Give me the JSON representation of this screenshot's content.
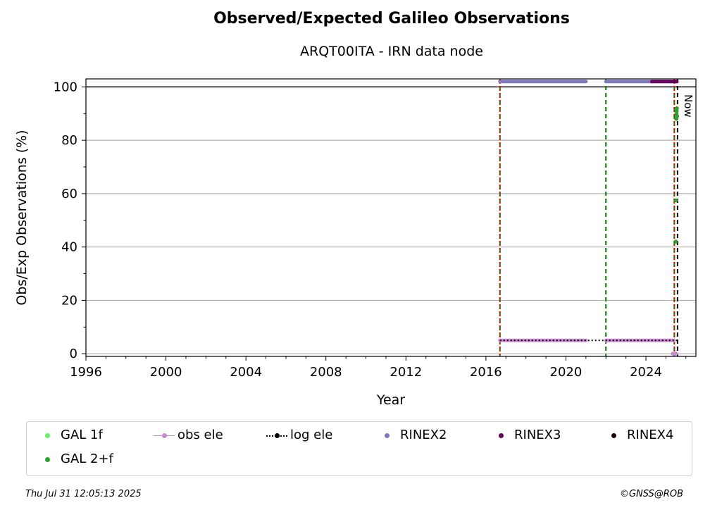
{
  "chart_data": {
    "type": "scatter",
    "title": "Observed/Expected Galileo Observations",
    "subtitle": "ARQT00ITA - IRN data node",
    "xlabel": "Year",
    "ylabel": "Obs/Exp Observations (%)",
    "xlim": [
      1996,
      2026.5
    ],
    "ylim": [
      -1,
      103
    ],
    "xticks": [
      1996,
      2000,
      2004,
      2008,
      2012,
      2016,
      2020,
      2024
    ],
    "yticks": [
      0,
      20,
      40,
      60,
      80,
      100
    ],
    "grid": "horizontal",
    "hline": 100,
    "vlines": [
      {
        "x": 2016.7,
        "color": "#008000",
        "style": "dashed"
      },
      {
        "x": 2016.7,
        "color": "#ff0000",
        "style": "dotted"
      },
      {
        "x": 2022.0,
        "color": "#008000",
        "style": "dashed"
      },
      {
        "x": 2025.42,
        "color": "#008000",
        "style": "dashed"
      },
      {
        "x": 2025.42,
        "color": "#ff0000",
        "style": "dotted"
      },
      {
        "x": 2025.58,
        "color": "#000000",
        "style": "dashed"
      }
    ],
    "now_label": "Now",
    "series": [
      {
        "name": "GAL 1f",
        "color": "#66ee66",
        "points": []
      },
      {
        "name": "GAL 2+f",
        "color": "#2ca02c",
        "points": [
          [
            2025.5,
            42
          ],
          [
            2025.51,
            57.5
          ],
          [
            2025.52,
            88
          ],
          [
            2025.53,
            90
          ],
          [
            2025.54,
            91
          ],
          [
            2025.55,
            92
          ],
          [
            2025.56,
            89
          ]
        ]
      },
      {
        "name": "obs ele",
        "color": "#c88ad0",
        "segments": [
          [
            2016.7,
            2021.0,
            5
          ],
          [
            2022.0,
            2025.4,
            5
          ]
        ],
        "points": [
          [
            2025.35,
            0
          ],
          [
            2025.45,
            0
          ],
          [
            2025.5,
            0
          ]
        ]
      },
      {
        "name": "log ele",
        "color": "#000000",
        "segments": [
          [
            2016.7,
            2025.55,
            5
          ]
        ]
      },
      {
        "name": "RINEX2",
        "color": "#8079c0",
        "segments": [
          [
            2016.7,
            2021.0,
            102
          ],
          [
            2022.0,
            2024.3,
            102
          ]
        ]
      },
      {
        "name": "RINEX3",
        "color": "#66005e",
        "segments": [
          [
            2024.3,
            2025.55,
            102
          ]
        ]
      },
      {
        "name": "RINEX4",
        "color": "#1a0010",
        "points": []
      }
    ]
  },
  "legend": {
    "items": [
      {
        "label": "GAL 1f",
        "color": "#66ee66",
        "kind": "dot"
      },
      {
        "label": "obs ele",
        "color": "#c88ad0",
        "kind": "line-dot"
      },
      {
        "label": "log ele",
        "color": "#000000",
        "kind": "dotted-dot"
      },
      {
        "label": "RINEX2",
        "color": "#8079c0",
        "kind": "dot"
      },
      {
        "label": "RINEX3",
        "color": "#66005e",
        "kind": "dot"
      },
      {
        "label": "RINEX4",
        "color": "#1a0010",
        "kind": "dot"
      },
      {
        "label": "GAL 2+f",
        "color": "#2ca02c",
        "kind": "dot"
      }
    ]
  },
  "footer": {
    "timestamp": "Thu Jul 31 12:05:13 2025",
    "credit": "©GNSS@ROB"
  }
}
